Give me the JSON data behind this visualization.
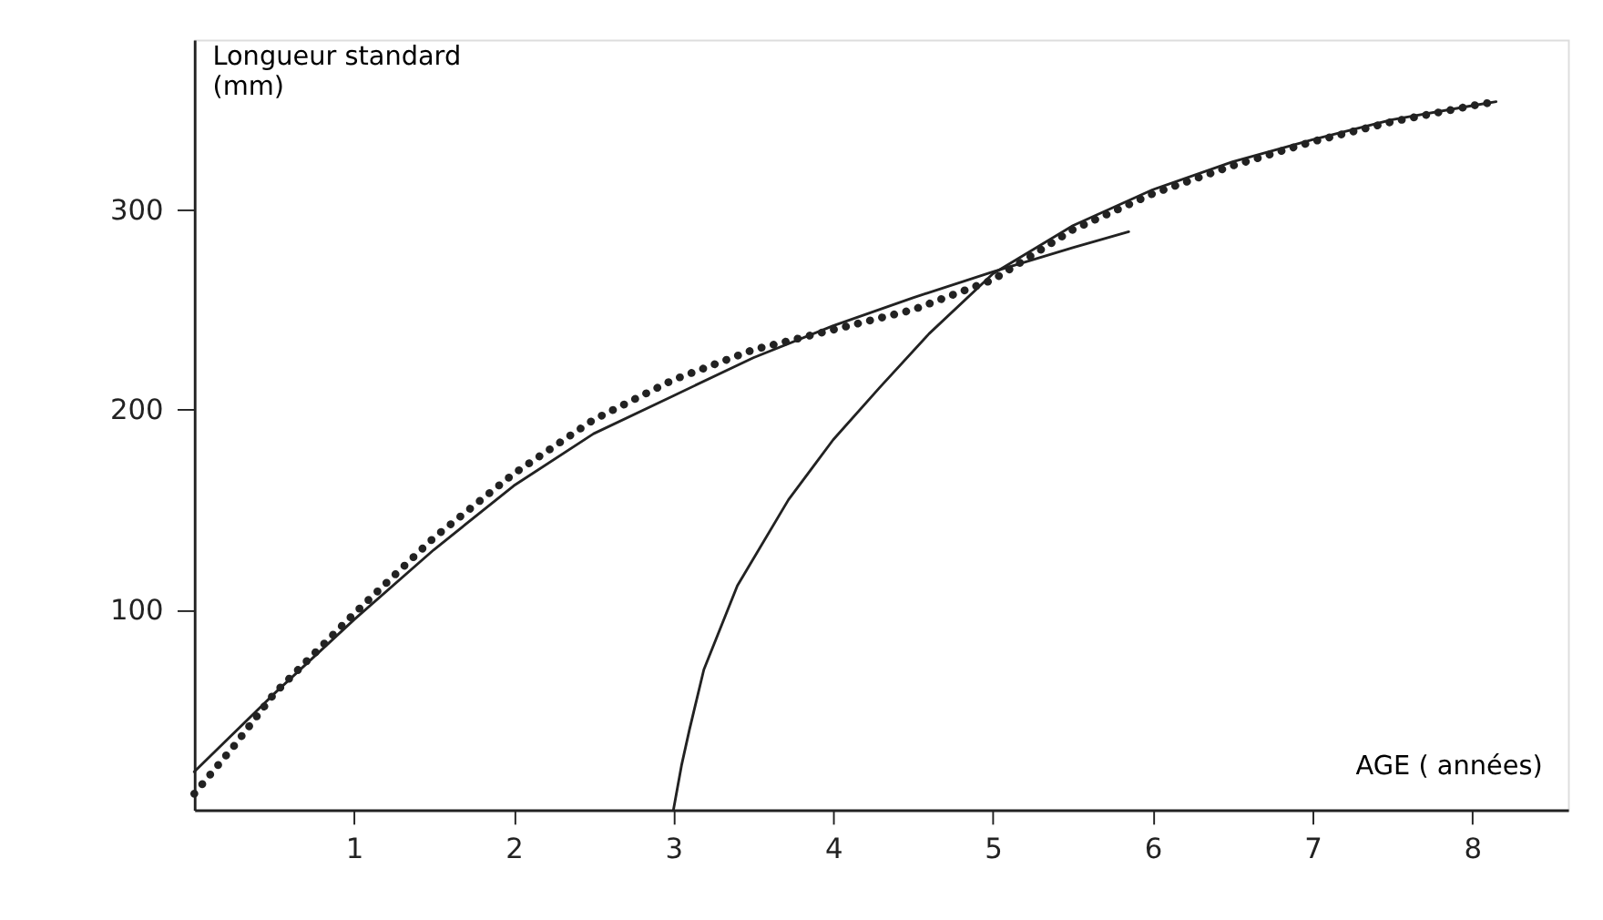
{
  "chart_data": {
    "type": "line",
    "xlabel": "AGE ( années)",
    "ylabel": "Longueur standard (mm)",
    "xlim": [
      0,
      8.6
    ],
    "ylim": [
      0,
      385
    ],
    "xticks": [
      1,
      2,
      3,
      4,
      5,
      6,
      7,
      8
    ],
    "yticks": [
      100,
      200,
      300
    ],
    "grid": false,
    "marker": "none",
    "series": [
      {
        "color": "#222222",
        "line_style": "solid",
        "x": [
          0,
          0.5,
          1,
          1.5,
          2,
          2.5,
          3,
          3.5,
          4,
          4.5,
          5,
          5.5,
          5.85
        ],
        "values": [
          19,
          58,
          95,
          130,
          162,
          188,
          207,
          226,
          242,
          256,
          269,
          281,
          289
        ]
      },
      {
        "color": "#222222",
        "line_style": "dotted",
        "x": [
          0,
          0.25,
          0.5,
          1,
          1.5,
          2,
          2.5,
          3,
          3.5,
          4,
          4.5,
          5,
          5.5,
          6,
          6.5,
          7,
          7.5,
          8,
          8.15
        ],
        "values": [
          8,
          32,
          58,
          98,
          136,
          168,
          195,
          215,
          230,
          240,
          250,
          265,
          290,
          308,
          322,
          334,
          344,
          352,
          354
        ]
      },
      {
        "color": "#222222",
        "line_style": "solid",
        "x": [
          3,
          3.05,
          3.1,
          3.19,
          3.4,
          3.72,
          4,
          4.29,
          4.6,
          5,
          5.5,
          6,
          6.5,
          7,
          7.5,
          8,
          8.15
        ],
        "values": [
          0,
          22,
          40,
          70,
          112,
          155,
          185,
          211,
          238,
          268,
          292,
          310,
          324,
          335,
          345,
          352,
          354
        ]
      }
    ]
  }
}
